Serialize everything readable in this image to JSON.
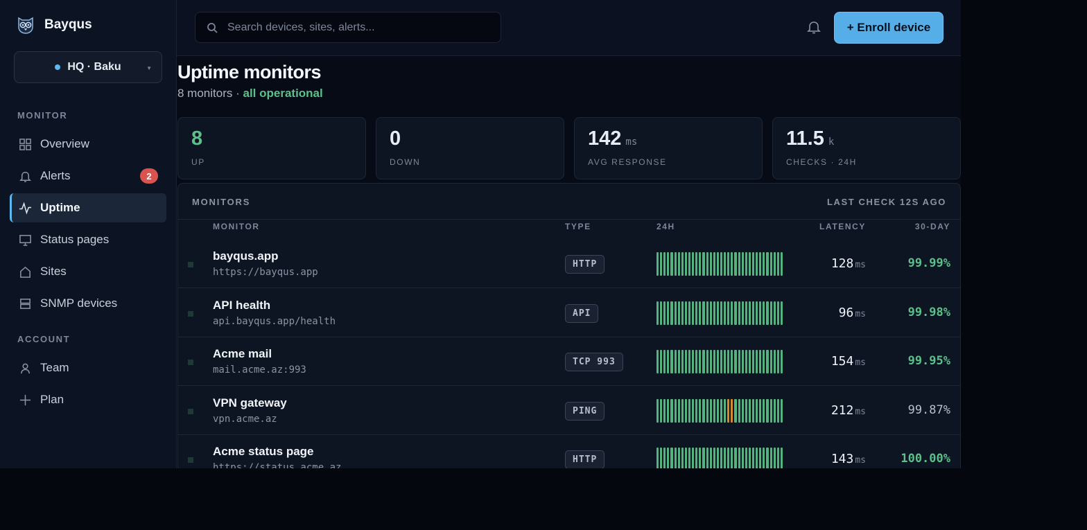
{
  "brand": {
    "name": "Bayqus",
    "logo_icon": "owl-icon"
  },
  "site_selector": {
    "label": "HQ · Baku",
    "status_color": "#5fb7f0"
  },
  "sidebar": {
    "sections": [
      {
        "title": "MONITOR",
        "items": [
          {
            "label": "Overview",
            "icon": "grid-icon"
          },
          {
            "label": "Alerts",
            "icon": "bell-icon",
            "badge": "2"
          },
          {
            "label": "Uptime",
            "icon": "pulse-icon",
            "active": true
          },
          {
            "label": "Status pages",
            "icon": "monitor-icon"
          },
          {
            "label": "Sites",
            "icon": "home-icon"
          },
          {
            "label": "SNMP devices",
            "icon": "server-icon"
          }
        ]
      },
      {
        "title": "ACCOUNT",
        "items": [
          {
            "label": "Team",
            "icon": "user-icon"
          },
          {
            "label": "Plan",
            "icon": "plus-icon"
          }
        ]
      }
    ]
  },
  "topbar": {
    "search_placeholder": "Search devices, sites, alerts...",
    "enroll_label": "+ Enroll device"
  },
  "page": {
    "title": "Uptime monitors",
    "subtitle_prefix": "8 monitors · ",
    "subtitle_status": "all operational"
  },
  "stats": [
    {
      "value": "8",
      "unit": "",
      "label": "UP"
    },
    {
      "value": "0",
      "unit": "",
      "label": "DOWN"
    },
    {
      "value": "142",
      "unit": "ms",
      "label": "AVG RESPONSE"
    },
    {
      "value": "11.5",
      "unit": "k",
      "label": "CHECKS · 24H"
    }
  ],
  "panel": {
    "title": "MONITORS",
    "meta": "LAST CHECK 12S AGO",
    "columns": {
      "monitor": "MONITOR",
      "type": "TYPE",
      "h24": "24H",
      "latency": "LATENCY",
      "d30": "30-DAY"
    }
  },
  "monitors": [
    {
      "name": "bayqus.app",
      "host": "https://bayqus.app",
      "type": "HTTP",
      "latency": "128",
      "latency_unit": "ms",
      "uptime": "99.99%",
      "uptime_highlight": true
    },
    {
      "name": "API health",
      "host": "api.bayqus.app/health",
      "type": "API",
      "latency": "96",
      "latency_unit": "ms",
      "uptime": "99.98%",
      "uptime_highlight": true
    },
    {
      "name": "Acme mail",
      "host": "mail.acme.az:993",
      "type": "TCP 993",
      "latency": "154",
      "latency_unit": "ms",
      "uptime": "99.95%",
      "uptime_highlight": true
    },
    {
      "name": "VPN gateway",
      "host": "vpn.acme.az",
      "type": "PING",
      "latency": "212",
      "latency_unit": "ms",
      "uptime": "99.87%",
      "uptime_highlight": false,
      "warn_bars": [
        20,
        21
      ]
    },
    {
      "name": "Acme status page",
      "host": "https://status.acme.az",
      "type": "HTTP",
      "latency": "143",
      "latency_unit": "ms",
      "uptime": "100.00%",
      "uptime_highlight": true
    }
  ],
  "colors": {
    "accent": "#56aee8",
    "ok": "#5cc08a",
    "warn": "#d68a2e",
    "danger": "#d9534f"
  }
}
